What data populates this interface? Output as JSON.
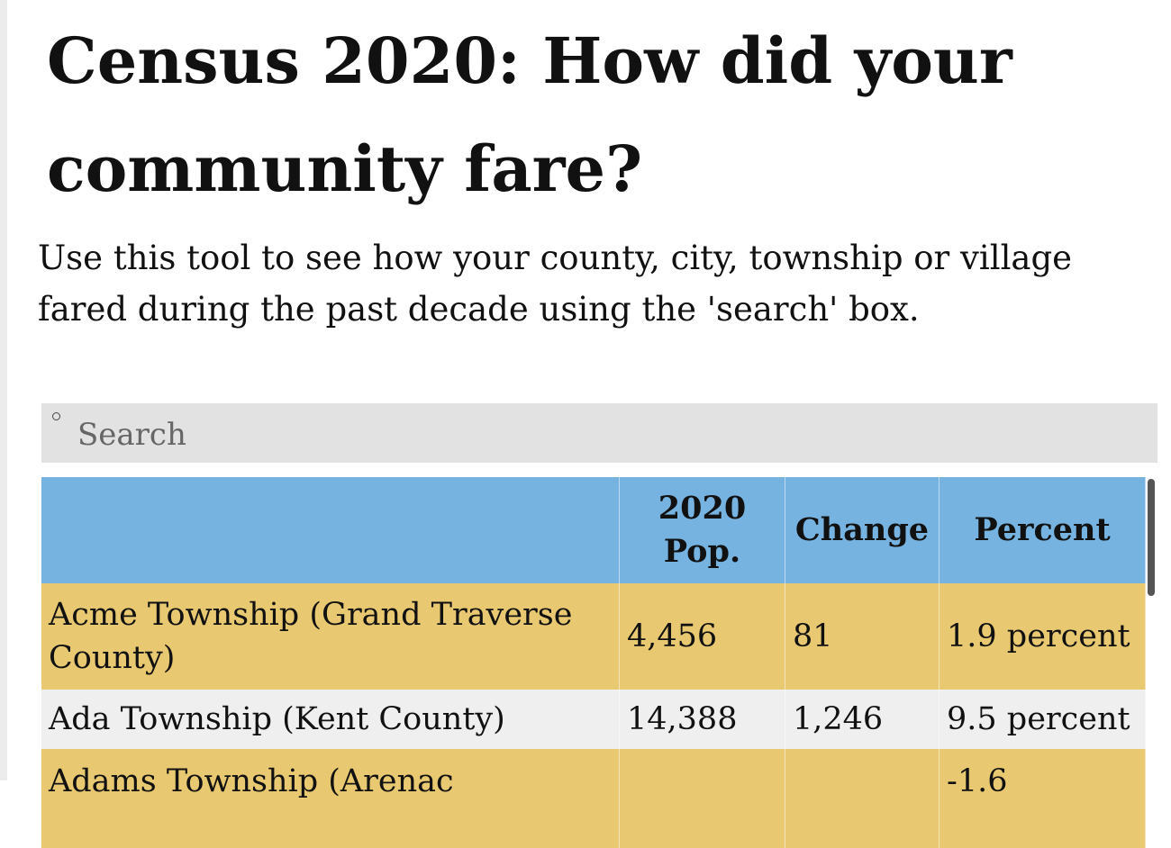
{
  "header": {
    "title": "Census 2020: How did your community fare?",
    "description": "Use this tool to see how your county, city, township or village fared during the past decade using the 'search' box."
  },
  "search": {
    "placeholder": "Search"
  },
  "table": {
    "columns": {
      "pop": "2020 Pop.",
      "change": "Change",
      "percent": "Percent"
    },
    "rows": [
      {
        "name": "Acme Township (Grand Traverse County)",
        "pop": "4,456",
        "change": "81",
        "percent": "1.9 percent"
      },
      {
        "name": "Ada Township (Kent County)",
        "pop": "14,388",
        "change": "1,246",
        "percent": "9.5 percent"
      },
      {
        "name": "Adams Township (Arenac",
        "percent": "-1.6"
      }
    ]
  }
}
